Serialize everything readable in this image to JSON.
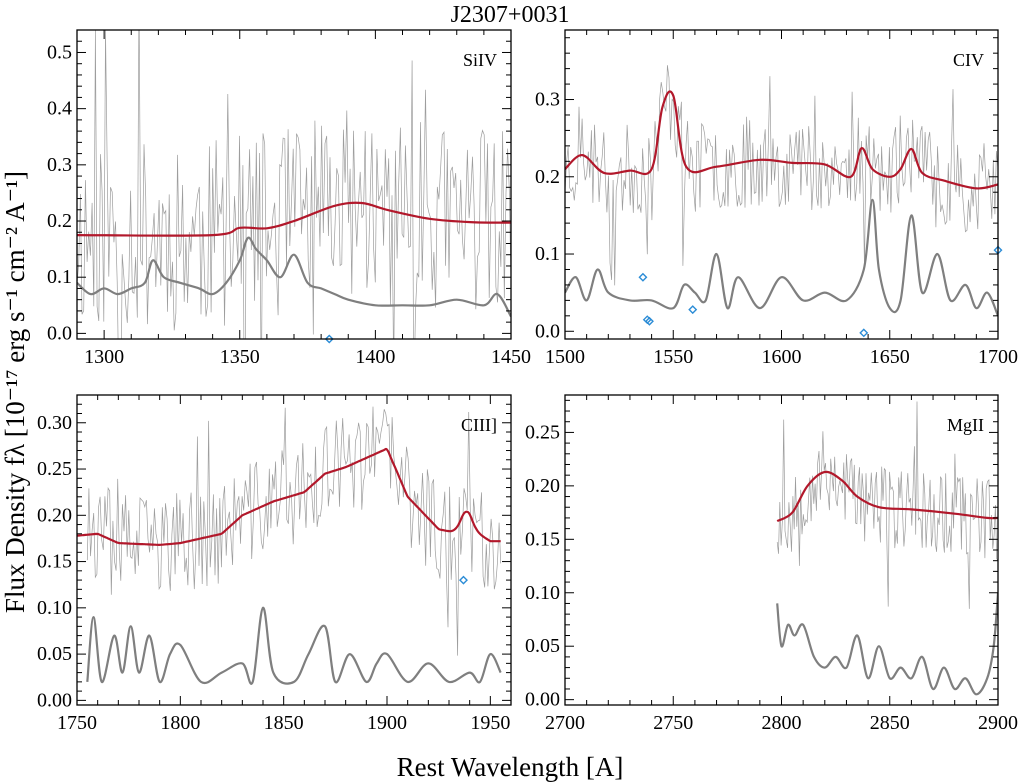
{
  "figure": {
    "title": "J2307+0031",
    "xlabel": "Rest Wavelength [A]",
    "ylabel": "Flux Density fλ [10⁻¹⁷ erg s⁻¹ cm⁻² A⁻¹]",
    "colors": {
      "spectrum": "#8c8c8c",
      "model": "#b2182b",
      "error": "#7f7f7f",
      "masked": "#2b8cd6"
    }
  },
  "chart_data": [
    {
      "type": "line",
      "label": "SiIV",
      "xlim": [
        1290,
        1450
      ],
      "ylim": [
        -0.01,
        0.54
      ],
      "xticks": [
        1300,
        1350,
        1400,
        1450
      ],
      "xtick_labels": [
        "1300",
        "1350",
        "1400",
        "1450"
      ],
      "yticks": [
        0.0,
        0.1,
        0.2,
        0.3,
        0.4,
        0.5
      ],
      "ytick_labels": [
        "0.0",
        "0.1",
        "0.2",
        "0.3",
        "0.4",
        "0.5"
      ],
      "spectrum": {
        "x_range": [
          1290,
          1450
        ],
        "mean": 0.18,
        "noise": 0.17,
        "seed": 11,
        "n": 260
      },
      "model": {
        "x": [
          1290,
          1340,
          1350,
          1360,
          1370,
          1385,
          1395,
          1405,
          1420,
          1435,
          1450
        ],
        "y": [
          0.175,
          0.175,
          0.188,
          0.187,
          0.2,
          0.227,
          0.232,
          0.219,
          0.204,
          0.198,
          0.197
        ]
      },
      "error": {
        "x": [
          1290,
          1295,
          1300,
          1305,
          1310,
          1315,
          1318,
          1322,
          1328,
          1335,
          1340,
          1345,
          1350,
          1353,
          1356,
          1360,
          1365,
          1370,
          1375,
          1380,
          1385,
          1390,
          1400,
          1410,
          1420,
          1430,
          1440,
          1445,
          1450
        ],
        "y": [
          0.09,
          0.07,
          0.08,
          0.07,
          0.08,
          0.09,
          0.13,
          0.1,
          0.09,
          0.08,
          0.07,
          0.09,
          0.13,
          0.17,
          0.15,
          0.13,
          0.1,
          0.14,
          0.09,
          0.08,
          0.07,
          0.06,
          0.05,
          0.05,
          0.05,
          0.06,
          0.05,
          0.07,
          0.03
        ]
      },
      "masked_points": [
        {
          "x": 1383,
          "y": -0.01
        }
      ]
    },
    {
      "type": "line",
      "label": "CIV",
      "xlim": [
        1500,
        1700
      ],
      "ylim": [
        -0.01,
        0.39
      ],
      "xticks": [
        1500,
        1550,
        1600,
        1650,
        1700
      ],
      "xtick_labels": [
        "1500",
        "1550",
        "1600",
        "1650",
        "1700"
      ],
      "yticks": [
        0.0,
        0.1,
        0.2,
        0.3
      ],
      "ytick_labels": [
        "0.0",
        "0.1",
        "0.2",
        "0.3"
      ],
      "spectrum": {
        "x_range": [
          1500,
          1700
        ],
        "mean": 0.2,
        "noise": 0.06,
        "seed": 23,
        "n": 280
      },
      "model": {
        "x": [
          1500,
          1508,
          1518,
          1530,
          1540,
          1545,
          1550,
          1556,
          1570,
          1590,
          1605,
          1620,
          1632,
          1637,
          1642,
          1650,
          1655,
          1660,
          1665,
          1675,
          1690,
          1700
        ],
        "y": [
          0.21,
          0.228,
          0.205,
          0.208,
          0.21,
          0.29,
          0.305,
          0.213,
          0.213,
          0.222,
          0.218,
          0.216,
          0.2,
          0.237,
          0.21,
          0.2,
          0.21,
          0.236,
          0.205,
          0.195,
          0.185,
          0.19
        ]
      },
      "error": {
        "x": [
          1500,
          1505,
          1510,
          1515,
          1520,
          1530,
          1540,
          1550,
          1555,
          1560,
          1565,
          1570,
          1575,
          1580,
          1590,
          1600,
          1610,
          1620,
          1630,
          1638,
          1642,
          1645,
          1650,
          1655,
          1660,
          1665,
          1672,
          1678,
          1685,
          1690,
          1695,
          1700
        ],
        "y": [
          0.05,
          0.07,
          0.04,
          0.08,
          0.05,
          0.04,
          0.04,
          0.03,
          0.06,
          0.05,
          0.04,
          0.1,
          0.03,
          0.07,
          0.03,
          0.07,
          0.04,
          0.05,
          0.04,
          0.08,
          0.17,
          0.08,
          0.03,
          0.04,
          0.15,
          0.05,
          0.1,
          0.04,
          0.06,
          0.03,
          0.05,
          0.02
        ]
      },
      "masked_points": [
        {
          "x": 1536,
          "y": 0.07
        },
        {
          "x": 1538,
          "y": 0.015
        },
        {
          "x": 1539,
          "y": 0.013
        },
        {
          "x": 1559,
          "y": 0.028
        },
        {
          "x": 1638,
          "y": -0.002
        },
        {
          "x": 1700,
          "y": 0.105
        }
      ]
    },
    {
      "type": "line",
      "label": "CIII]",
      "xlim": [
        1750,
        1960
      ],
      "ylim": [
        -0.005,
        0.33
      ],
      "xticks": [
        1750,
        1800,
        1850,
        1900,
        1950
      ],
      "xtick_labels": [
        "1750",
        "1800",
        "1850",
        "1900",
        "1950"
      ],
      "yticks": [
        0.0,
        0.05,
        0.1,
        0.15,
        0.2,
        0.25,
        0.3
      ],
      "ytick_labels": [
        "0.00",
        "0.05",
        "0.10",
        "0.15",
        "0.20",
        "0.25",
        "0.30"
      ],
      "spectrum": {
        "x_range": [
          1755,
          1955
        ],
        "mean": 0.2,
        "noise": 0.055,
        "seed": 37,
        "n": 260
      },
      "model": {
        "x": [
          1750,
          1760,
          1770,
          1790,
          1800,
          1810,
          1820,
          1830,
          1845,
          1860,
          1870,
          1880,
          1890,
          1900,
          1910,
          1925,
          1935,
          1940,
          1950,
          1955
        ],
        "y": [
          0.178,
          0.18,
          0.17,
          0.168,
          0.17,
          0.175,
          0.18,
          0.2,
          0.215,
          0.225,
          0.245,
          0.252,
          0.262,
          0.272,
          0.22,
          0.185,
          0.18,
          0.186,
          0.172,
          0.172
        ]
      },
      "model_bumps": [
        {
          "x": 1938,
          "h": 0.02,
          "w": 4
        }
      ],
      "error": {
        "x": [
          1755,
          1758,
          1762,
          1768,
          1772,
          1776,
          1780,
          1785,
          1790,
          1795,
          1800,
          1810,
          1820,
          1830,
          1835,
          1840,
          1845,
          1855,
          1862,
          1870,
          1875,
          1882,
          1890,
          1895,
          1900,
          1910,
          1920,
          1930,
          1940,
          1945,
          1950,
          1955
        ],
        "y": [
          0.02,
          0.09,
          0.02,
          0.07,
          0.03,
          0.08,
          0.03,
          0.07,
          0.02,
          0.05,
          0.06,
          0.02,
          0.03,
          0.04,
          0.02,
          0.1,
          0.03,
          0.02,
          0.05,
          0.08,
          0.02,
          0.05,
          0.02,
          0.04,
          0.05,
          0.02,
          0.04,
          0.02,
          0.03,
          0.02,
          0.05,
          0.03
        ]
      },
      "masked_points": [
        {
          "x": 1937,
          "y": 0.13
        }
      ]
    },
    {
      "type": "line",
      "label": "MgII",
      "xlim": [
        2700,
        2900
      ],
      "ylim": [
        -0.005,
        0.285
      ],
      "xticks": [
        2700,
        2750,
        2800,
        2850,
        2900
      ],
      "xtick_labels": [
        "2700",
        "2750",
        "2800",
        "2850",
        "2900"
      ],
      "yticks": [
        0.0,
        0.05,
        0.1,
        0.15,
        0.2,
        0.25
      ],
      "ytick_labels": [
        "0.00",
        "0.05",
        "0.10",
        "0.15",
        "0.20",
        "0.25"
      ],
      "spectrum": {
        "x_range": [
          2798,
          2900
        ],
        "mean": 0.185,
        "noise": 0.04,
        "seed": 53,
        "n": 170
      },
      "model": {
        "x": [
          2798,
          2805,
          2812,
          2820,
          2828,
          2835,
          2845,
          2860,
          2880,
          2895,
          2900
        ],
        "y": [
          0.167,
          0.175,
          0.2,
          0.213,
          0.205,
          0.19,
          0.18,
          0.178,
          0.174,
          0.17,
          0.17
        ]
      },
      "error": {
        "x": [
          2798,
          2800,
          2803,
          2806,
          2810,
          2815,
          2820,
          2825,
          2830,
          2835,
          2840,
          2845,
          2850,
          2855,
          2860,
          2865,
          2870,
          2875,
          2880,
          2885,
          2890,
          2895,
          2898,
          2900
        ],
        "y": [
          0.09,
          0.05,
          0.07,
          0.06,
          0.07,
          0.04,
          0.03,
          0.04,
          0.03,
          0.06,
          0.02,
          0.05,
          0.02,
          0.03,
          0.02,
          0.04,
          0.01,
          0.03,
          0.01,
          0.02,
          0.005,
          0.02,
          0.05,
          0.1
        ]
      },
      "masked_points": []
    }
  ]
}
